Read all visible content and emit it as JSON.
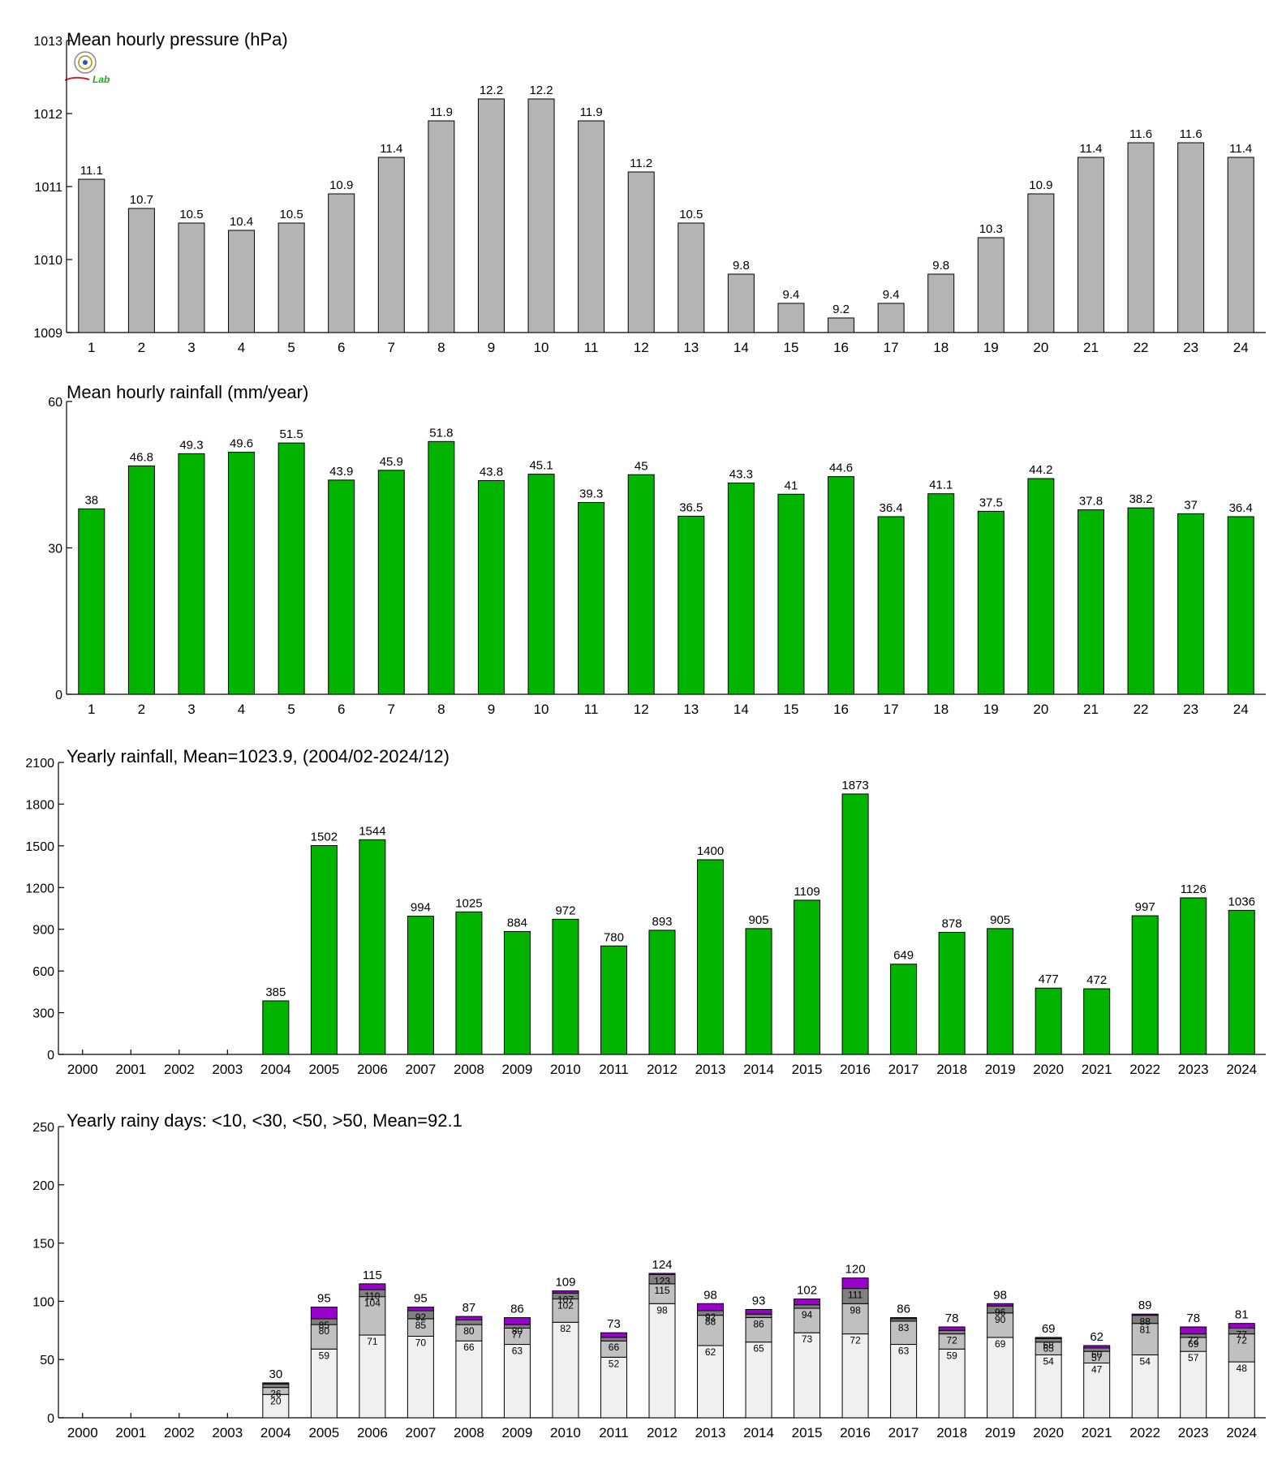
{
  "colors": {
    "pressure_bar": "#b4b4b4",
    "rain_bar": "#00b400",
    "days_lt10": "#f0f0f0",
    "days_lt30": "#c0c0c0",
    "days_lt50": "#808080",
    "days_gt50": "#9900cc",
    "outline": "#000000"
  },
  "logo": {
    "text": "Lab",
    "icon": "seal-logo-icon"
  },
  "chart_data": [
    {
      "type": "bar",
      "title": "Mean hourly pressure (hPa)",
      "categories": [
        "1",
        "2",
        "3",
        "4",
        "5",
        "6",
        "7",
        "8",
        "9",
        "10",
        "11",
        "12",
        "13",
        "14",
        "15",
        "16",
        "17",
        "18",
        "19",
        "20",
        "21",
        "22",
        "23",
        "24"
      ],
      "values": [
        1011.1,
        1010.7,
        1010.5,
        1010.4,
        1010.5,
        1010.9,
        1011.4,
        1011.9,
        1012.2,
        1012.2,
        1011.9,
        1011.2,
        1010.5,
        1009.8,
        1009.4,
        1009.2,
        1009.4,
        1009.8,
        1010.3,
        1010.9,
        1011.4,
        1011.6,
        1011.6,
        1011.4
      ],
      "data_labels": [
        "11.1",
        "10.7",
        "10.5",
        "10.4",
        "10.5",
        "10.9",
        "11.4",
        "11.9",
        "12.2",
        "12.2",
        "11.9",
        "11.2",
        "10.5",
        "9.8",
        "9.4",
        "9.2",
        "9.4",
        "9.8",
        "10.3",
        "10.9",
        "11.4",
        "11.6",
        "11.6",
        "11.4"
      ],
      "ylim": [
        1009,
        1013
      ],
      "yticks": [
        "1009",
        "1010",
        "1011",
        "1012",
        "1013"
      ],
      "grid": false
    },
    {
      "type": "bar",
      "title": "Mean hourly rainfall (mm/year)",
      "categories": [
        "1",
        "2",
        "3",
        "4",
        "5",
        "6",
        "7",
        "8",
        "9",
        "10",
        "11",
        "12",
        "13",
        "14",
        "15",
        "16",
        "17",
        "18",
        "19",
        "20",
        "21",
        "22",
        "23",
        "24"
      ],
      "values": [
        38,
        46.8,
        49.3,
        49.6,
        51.5,
        43.9,
        45.9,
        51.8,
        43.8,
        45.1,
        39.3,
        45,
        36.5,
        43.3,
        41,
        44.6,
        36.4,
        41.1,
        37.5,
        44.2,
        37.8,
        38.2,
        37,
        36.4
      ],
      "data_labels": [
        "38",
        "46.8",
        "49.3",
        "49.6",
        "51.5",
        "43.9",
        "45.9",
        "51.8",
        "43.8",
        "45.1",
        "39.3",
        "45",
        "36.5",
        "43.3",
        "41",
        "44.6",
        "36.4",
        "41.1",
        "37.5",
        "44.2",
        "37.8",
        "38.2",
        "37",
        "36.4"
      ],
      "ylim": [
        0,
        60
      ],
      "yticks": [
        "0",
        "30",
        "60"
      ],
      "grid": false
    },
    {
      "type": "bar",
      "title": "Yearly rainfall, Mean=1023.9, (2004/02-2024/12)",
      "categories": [
        "2000",
        "2001",
        "2002",
        "2003",
        "2004",
        "2005",
        "2006",
        "2007",
        "2008",
        "2009",
        "2010",
        "2011",
        "2012",
        "2013",
        "2014",
        "2015",
        "2016",
        "2017",
        "2018",
        "2019",
        "2020",
        "2021",
        "2022",
        "2023",
        "2024"
      ],
      "values": [
        null,
        null,
        null,
        null,
        385,
        1502,
        1544,
        994,
        1025,
        884,
        972,
        780,
        893,
        1400,
        905,
        1109,
        1873,
        649,
        878,
        905,
        477,
        472,
        997,
        1126,
        1036
      ],
      "data_labels": [
        "",
        "",
        "",
        "",
        "385",
        "1502",
        "1544",
        "994",
        "1025",
        "884",
        "972",
        "780",
        "893",
        "1400",
        "905",
        "1109",
        "1873",
        "649",
        "878",
        "905",
        "477",
        "472",
        "997",
        "1126",
        "1036"
      ],
      "ylim": [
        0,
        2100
      ],
      "yticks": [
        "0",
        "300",
        "600",
        "900",
        "1200",
        "1500",
        "1800",
        "2100"
      ],
      "grid": false
    },
    {
      "type": "bar",
      "stacked": true,
      "title": "Yearly rainy days: <10, <30, <50, >50, Mean=92.1",
      "categories": [
        "2000",
        "2001",
        "2002",
        "2003",
        "2004",
        "2005",
        "2006",
        "2007",
        "2008",
        "2009",
        "2010",
        "2011",
        "2012",
        "2013",
        "2014",
        "2015",
        "2016",
        "2017",
        "2018",
        "2019",
        "2020",
        "2021",
        "2022",
        "2023",
        "2024"
      ],
      "cumulative": [
        [
          null,
          null,
          null,
          null
        ],
        [
          null,
          null,
          null,
          null
        ],
        [
          null,
          null,
          null,
          null
        ],
        [
          null,
          null,
          null,
          null
        ],
        [
          20,
          26,
          29,
          30
        ],
        [
          59,
          80,
          85,
          95
        ],
        [
          71,
          104,
          110,
          115
        ],
        [
          70,
          85,
          92,
          95
        ],
        [
          66,
          80,
          84,
          87
        ],
        [
          63,
          77,
          80,
          86
        ],
        [
          82,
          102,
          107,
          109
        ],
        [
          52,
          66,
          69,
          73
        ],
        [
          98,
          115,
          123,
          124
        ],
        [
          62,
          88,
          92,
          98
        ],
        [
          65,
          86,
          89,
          93
        ],
        [
          73,
          94,
          97,
          102
        ],
        [
          72,
          98,
          111,
          120
        ],
        [
          63,
          83,
          85,
          86
        ],
        [
          59,
          72,
          75,
          78
        ],
        [
          69,
          90,
          96,
          98
        ],
        [
          54,
          65,
          68,
          69
        ],
        [
          47,
          57,
          60,
          62
        ],
        [
          54,
          81,
          88,
          89
        ],
        [
          57,
          69,
          72,
          78
        ],
        [
          48,
          72,
          77,
          81
        ]
      ],
      "inner_labels": [
        [
          "",
          "",
          ""
        ],
        [
          "",
          "",
          ""
        ],
        [
          "",
          "",
          ""
        ],
        [
          "",
          "",
          ""
        ],
        [
          "20",
          "26",
          ""
        ],
        [
          "59",
          "80",
          "85"
        ],
        [
          "71",
          "104",
          "110"
        ],
        [
          "70",
          "85",
          "92"
        ],
        [
          "66",
          "80",
          ""
        ],
        [
          "63",
          "77",
          "80"
        ],
        [
          "82",
          "102",
          "107"
        ],
        [
          "52",
          "66",
          ""
        ],
        [
          "98",
          "115",
          "123"
        ],
        [
          "62",
          "88",
          "92"
        ],
        [
          "65",
          "86",
          ""
        ],
        [
          "73",
          "94",
          ""
        ],
        [
          "72",
          "98",
          "111"
        ],
        [
          "63",
          "83",
          ""
        ],
        [
          "59",
          "72",
          ""
        ],
        [
          "69",
          "90",
          "96"
        ],
        [
          "54",
          "65",
          "68"
        ],
        [
          "47",
          "57",
          "60"
        ],
        [
          "54",
          "81",
          "88"
        ],
        [
          "57",
          "69",
          "72"
        ],
        [
          "48",
          "72",
          "77"
        ]
      ],
      "total_labels": [
        "",
        "",
        "",
        "",
        "30",
        "95",
        "115",
        "95",
        "87",
        "86",
        "109",
        "73",
        "124",
        "98",
        "93",
        "102",
        "120",
        "86",
        "78",
        "98",
        "69",
        "62",
        "89",
        "78",
        "81"
      ],
      "ylim": [
        0,
        250
      ],
      "yticks": [
        "0",
        "50",
        "100",
        "150",
        "200",
        "250"
      ],
      "grid": false
    }
  ]
}
